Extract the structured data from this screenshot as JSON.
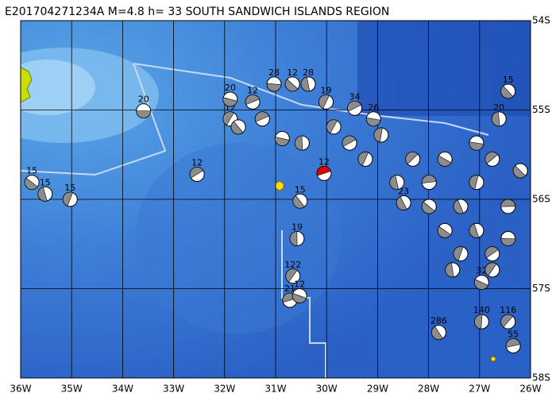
{
  "map": {
    "title": "E201704271234A M=4.8 h= 33 SOUTH SANDWICH ISLANDS REGION",
    "lonlim": [
      -36,
      -26
    ],
    "latlim": [
      -58,
      -54
    ],
    "lonticks": [
      {
        "value": -36,
        "label": "36W"
      },
      {
        "value": -35,
        "label": "35W"
      },
      {
        "value": -34,
        "label": "34W"
      },
      {
        "value": -33,
        "label": "33W"
      },
      {
        "value": -32,
        "label": "32W"
      },
      {
        "value": -31,
        "label": "31W"
      },
      {
        "value": -30,
        "label": "30W"
      },
      {
        "value": -29,
        "label": "29W"
      },
      {
        "value": -28,
        "label": "28W"
      },
      {
        "value": -27,
        "label": "27W"
      },
      {
        "value": -26,
        "label": "26W"
      }
    ],
    "latticks": [
      {
        "value": -54,
        "label": "54S"
      },
      {
        "value": -55,
        "label": "55S"
      },
      {
        "value": -56,
        "label": "56S"
      },
      {
        "value": -57,
        "label": "57S"
      },
      {
        "value": -58,
        "label": "58S"
      }
    ],
    "ball_color": "#8c8c8c",
    "events": [
      {
        "lon": -33.59,
        "lat": -55.01,
        "label": "20"
      },
      {
        "lon": -35.78,
        "lat": -55.81,
        "label": "15"
      },
      {
        "lon": -35.52,
        "lat": -55.94,
        "label": "15"
      },
      {
        "lon": -35.03,
        "lat": -56.0,
        "label": "15"
      },
      {
        "lon": -32.54,
        "lat": -55.72,
        "label": "12"
      },
      {
        "lon": -31.03,
        "lat": -54.71,
        "label": "28"
      },
      {
        "lon": -30.67,
        "lat": -54.71,
        "label": "12"
      },
      {
        "lon": -30.36,
        "lat": -54.71,
        "label": "28"
      },
      {
        "lon": -30.01,
        "lat": -54.91,
        "label": "19"
      },
      {
        "lon": -29.45,
        "lat": -54.98,
        "label": "34"
      },
      {
        "lon": -29.08,
        "lat": -55.1,
        "label": "26"
      },
      {
        "lon": -26.44,
        "lat": -54.79,
        "label": "15"
      },
      {
        "lon": -26.62,
        "lat": -55.1,
        "label": "20"
      },
      {
        "lon": -31.89,
        "lat": -55.1,
        "label": "12"
      },
      {
        "lon": -31.45,
        "lat": -54.91,
        "label": "12"
      },
      {
        "lon": -31.89,
        "lat": -54.88,
        "label": "20"
      },
      {
        "lon": -30.52,
        "lat": -56.02,
        "label": "15"
      },
      {
        "lon": -30.58,
        "lat": -56.44,
        "label": "19"
      },
      {
        "lon": -30.66,
        "lat": -56.86,
        "label": "122"
      },
      {
        "lon": -30.72,
        "lat": -57.13,
        "label": "21"
      },
      {
        "lon": -30.53,
        "lat": -57.08,
        "label": "12"
      },
      {
        "lon": -27.8,
        "lat": -57.49,
        "label": "286"
      },
      {
        "lon": -26.96,
        "lat": -57.37,
        "label": "140"
      },
      {
        "lon": -26.44,
        "lat": -57.37,
        "label": "116"
      },
      {
        "lon": -26.34,
        "lat": -57.64,
        "label": "55"
      },
      {
        "lon": -26.96,
        "lat": -56.93,
        "label": "32"
      },
      {
        "lon": -28.49,
        "lat": -56.04,
        "label": "23"
      },
      {
        "lon": -28.93,
        "lat": -55.28,
        "label": null
      },
      {
        "lon": -28.31,
        "lat": -55.55,
        "label": null
      },
      {
        "lon": -27.99,
        "lat": -55.81,
        "label": null
      },
      {
        "lon": -27.68,
        "lat": -55.55,
        "label": null
      },
      {
        "lon": -27.37,
        "lat": -56.08,
        "label": null
      },
      {
        "lon": -27.06,
        "lat": -55.81,
        "label": null
      },
      {
        "lon": -26.75,
        "lat": -55.55,
        "label": null
      },
      {
        "lon": -26.44,
        "lat": -56.08,
        "label": null
      },
      {
        "lon": -27.68,
        "lat": -56.35,
        "label": null
      },
      {
        "lon": -27.06,
        "lat": -56.35,
        "label": null
      },
      {
        "lon": -27.37,
        "lat": -56.61,
        "label": null
      },
      {
        "lon": -26.75,
        "lat": -56.61,
        "label": null
      },
      {
        "lon": -26.44,
        "lat": -56.44,
        "label": null
      },
      {
        "lon": -27.99,
        "lat": -56.08,
        "label": null
      },
      {
        "lon": -28.62,
        "lat": -55.81,
        "label": null
      },
      {
        "lon": -29.24,
        "lat": -55.55,
        "label": null
      },
      {
        "lon": -29.55,
        "lat": -55.37,
        "label": null
      },
      {
        "lon": -27.06,
        "lat": -55.37,
        "label": null
      },
      {
        "lon": -26.2,
        "lat": -55.68,
        "label": null
      },
      {
        "lon": -27.53,
        "lat": -56.79,
        "label": null
      },
      {
        "lon": -29.86,
        "lat": -55.19,
        "label": null
      },
      {
        "lon": -31.26,
        "lat": -55.1,
        "label": null
      },
      {
        "lon": -30.87,
        "lat": -55.32,
        "label": null
      },
      {
        "lon": -31.73,
        "lat": -55.19,
        "label": null
      },
      {
        "lon": -30.48,
        "lat": -55.37,
        "label": null
      },
      {
        "lon": -26.75,
        "lat": -56.79,
        "label": null
      },
      {
        "lon": -30.05,
        "lat": -55.71,
        "label": "12",
        "color": "#e00000"
      }
    ]
  }
}
